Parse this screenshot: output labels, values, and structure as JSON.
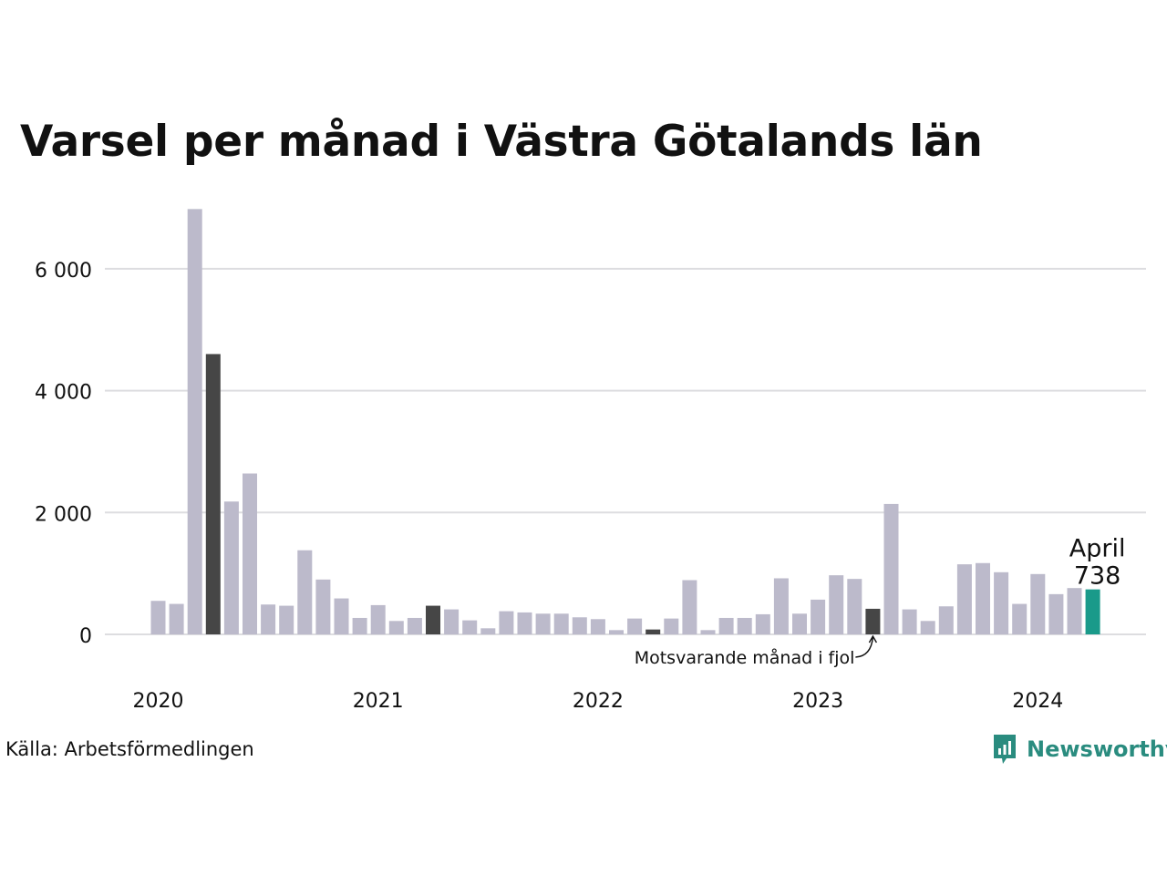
{
  "title": "Varsel per månad i Västra Götalands län",
  "source": "Källa: Arbetsförmedlingen",
  "brand": "Newsworthy",
  "colors": {
    "bar": "#bcbacb",
    "same_month": "#464646",
    "current": "#1a9a8a",
    "grid": "#dddde0",
    "text": "#111111",
    "brand": "#2a8c7f"
  },
  "chart_data": {
    "type": "bar",
    "title": "Varsel per månad i Västra Götalands län",
    "x": [
      "2020-01",
      "2020-02",
      "2020-03",
      "2020-04",
      "2020-05",
      "2020-06",
      "2020-07",
      "2020-08",
      "2020-09",
      "2020-10",
      "2020-11",
      "2020-12",
      "2021-01",
      "2021-02",
      "2021-03",
      "2021-04",
      "2021-05",
      "2021-06",
      "2021-07",
      "2021-08",
      "2021-09",
      "2021-10",
      "2021-11",
      "2021-12",
      "2022-01",
      "2022-02",
      "2022-03",
      "2022-04",
      "2022-05",
      "2022-06",
      "2022-07",
      "2022-08",
      "2022-09",
      "2022-10",
      "2022-11",
      "2022-12",
      "2023-01",
      "2023-02",
      "2023-03",
      "2023-04",
      "2023-05",
      "2023-06",
      "2023-07",
      "2023-08",
      "2023-09",
      "2023-10",
      "2023-11",
      "2023-12",
      "2024-01",
      "2024-02",
      "2024-03",
      "2024-04"
    ],
    "values": [
      550,
      500,
      6980,
      4600,
      2180,
      2640,
      490,
      470,
      1380,
      900,
      590,
      270,
      480,
      220,
      270,
      470,
      410,
      230,
      100,
      380,
      360,
      340,
      340,
      280,
      250,
      70,
      260,
      80,
      260,
      890,
      70,
      270,
      270,
      330,
      920,
      340,
      570,
      970,
      910,
      420,
      2140,
      410,
      220,
      460,
      1150,
      1170,
      1020,
      500,
      990,
      660,
      760,
      738
    ],
    "highlight": {
      "same_month_last_years": [
        "2020-04",
        "2021-04",
        "2022-04",
        "2023-04"
      ],
      "current": "2024-04"
    },
    "yticks": [
      0,
      2000,
      4000,
      6000
    ],
    "ytick_labels": [
      "0",
      "2 000",
      "4 000",
      "6 000"
    ],
    "xtick_labels": [
      "2020",
      "2021",
      "2022",
      "2023",
      "2024"
    ],
    "ylim": [
      0,
      7000
    ],
    "grid": true,
    "annotations": {
      "current_month": "April",
      "current_value": "738",
      "last_year_label": "Motsvarande månad i fjol"
    }
  }
}
